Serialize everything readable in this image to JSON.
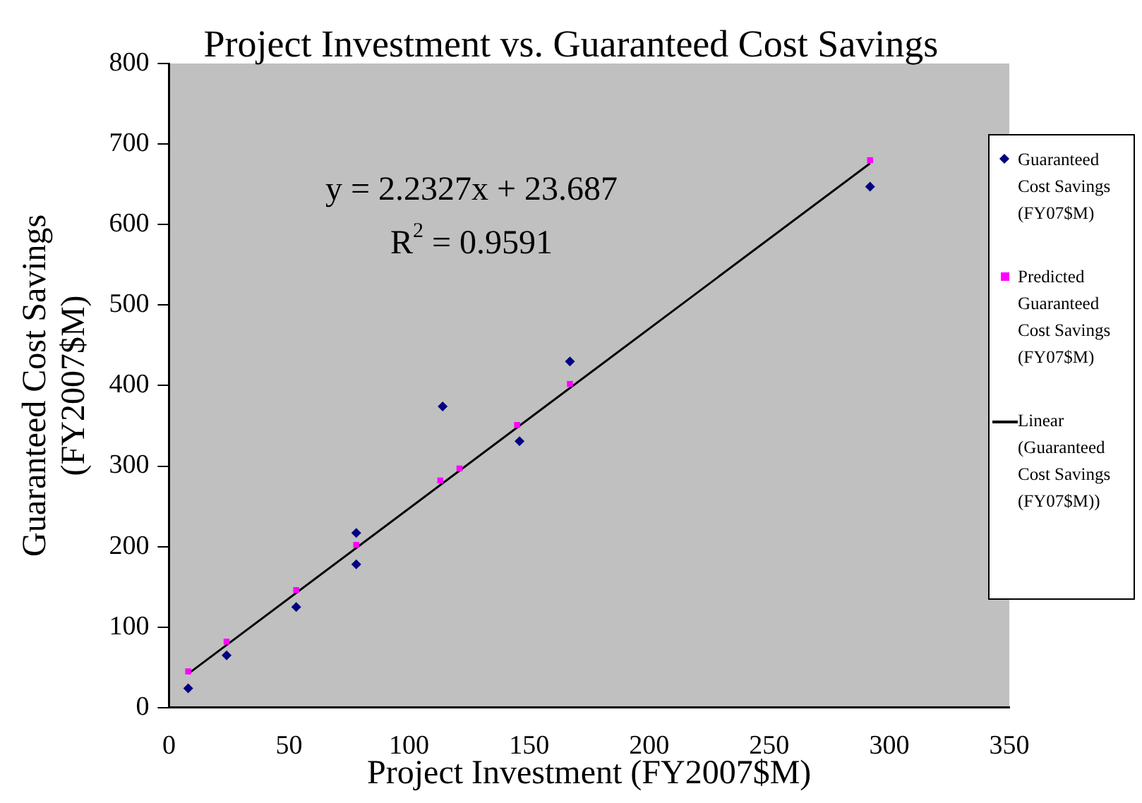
{
  "chart_data": {
    "type": "scatter",
    "title": "Project Investment vs. Guaranteed Cost Savings",
    "xlabel": "Project Investment (FY2007$M)",
    "ylabel": "Guaranteed Cost Savings (FY2007$M)",
    "xlim": [
      0,
      350
    ],
    "xticks": [
      0,
      50,
      100,
      150,
      200,
      250,
      300,
      350
    ],
    "ylim": [
      0,
      800
    ],
    "yticks": [
      0,
      100,
      200,
      300,
      400,
      500,
      600,
      700,
      800
    ],
    "grid": false,
    "legend": "right",
    "annotations": [
      "y = 2.2327x + 23.687",
      "R$^{2}$ = 0.9591"
    ],
    "series": [
      {
        "name": "Guaranteed Cost Savings (FY07$M)",
        "marker": "diamond",
        "color": "#000080",
        "x": [
          8,
          24,
          53,
          78,
          78,
          114,
          146,
          167,
          292
        ],
        "values": [
          24,
          65,
          125,
          217,
          178,
          374,
          331,
          430,
          647
        ]
      },
      {
        "name": "Predicted Guaranteed Cost Savings (FY07$M)",
        "marker": "square",
        "color": "#ff00ff",
        "x": [
          8,
          24,
          53,
          78,
          113,
          121,
          145,
          167,
          292
        ],
        "values": [
          45,
          82,
          146,
          202,
          282,
          297,
          351,
          402,
          680
        ]
      },
      {
        "name": "Linear (Guaranteed Cost Savings (FY07$M))",
        "type": "line",
        "marker": "none",
        "line_style": "solid",
        "color": "#000000",
        "x": [
          8,
          292
        ],
        "values": [
          42,
          676
        ]
      }
    ]
  }
}
